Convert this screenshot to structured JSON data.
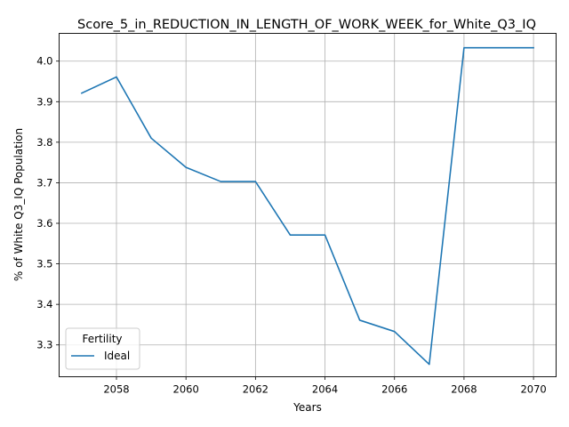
{
  "chart_data": {
    "type": "line",
    "title": "Score_5_in_REDUCTION_IN_LENGTH_OF_WORK_WEEK_for_White_Q3_IQ",
    "xlabel": "Years",
    "ylabel": "% of White Q3_IQ Population",
    "xlim": [
      2056.35,
      2070.65
    ],
    "ylim": [
      3.2215,
      4.0685
    ],
    "xticks": [
      2058,
      2060,
      2062,
      2064,
      2066,
      2068,
      2070
    ],
    "yticks": [
      3.3,
      3.4,
      3.5,
      3.6,
      3.7,
      3.8,
      3.9,
      4.0
    ],
    "xtick_labels": [
      "2058",
      "2060",
      "2062",
      "2064",
      "2066",
      "2068",
      "2070"
    ],
    "ytick_labels": [
      "3.3",
      "3.4",
      "3.5",
      "3.6",
      "3.7",
      "3.8",
      "3.9",
      "4.0"
    ],
    "grid": true,
    "legend": {
      "title": "Fertility",
      "placement": "lower-left"
    },
    "series": [
      {
        "name": "Ideal",
        "color": "#1f77b4",
        "x": [
          2057,
          2058,
          2059,
          2060,
          2061,
          2062,
          2063,
          2064,
          2065,
          2066,
          2067,
          2068,
          2069,
          2070
        ],
        "y": [
          3.921,
          3.961,
          3.81,
          3.738,
          3.703,
          3.703,
          3.571,
          3.571,
          3.361,
          3.333,
          3.252,
          4.033,
          4.033,
          4.033
        ]
      }
    ]
  }
}
